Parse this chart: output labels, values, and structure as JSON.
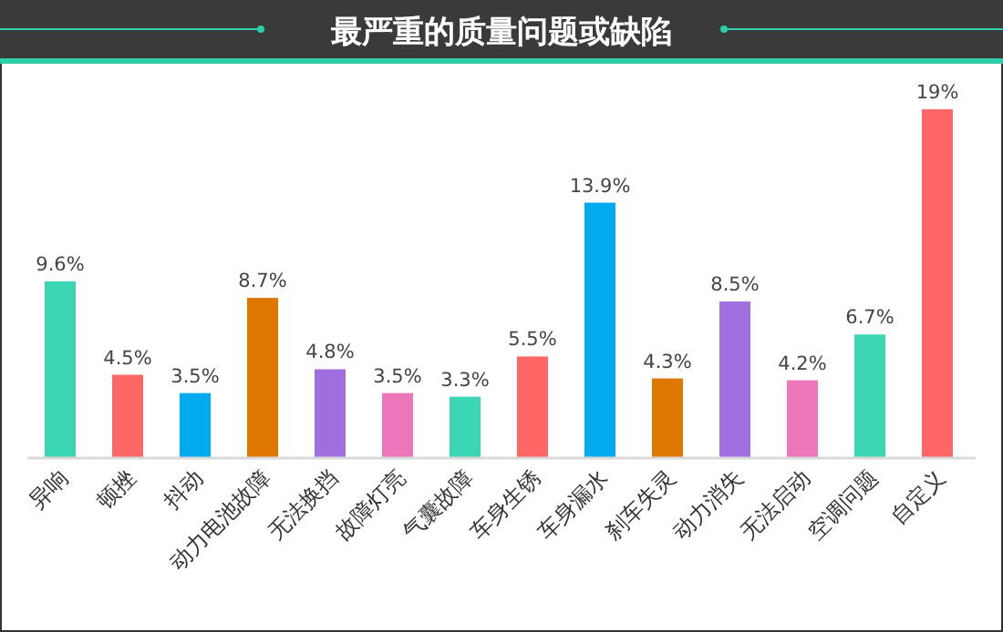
{
  "chart_data": {
    "type": "bar",
    "title": "最严重的质量问题或缺陷",
    "categories": [
      "异响",
      "顿挫",
      "抖动",
      "动力电池故障",
      "无法换挡",
      "故障灯亮",
      "气囊故障",
      "车身生锈",
      "车身漏水",
      "刹车失灵",
      "动力消失",
      "无法启动",
      "空调问题",
      "自定义"
    ],
    "values": [
      9.6,
      4.5,
      3.5,
      8.7,
      4.8,
      3.5,
      3.3,
      5.5,
      13.9,
      4.3,
      8.5,
      4.2,
      6.7,
      19
    ],
    "colors": [
      "#3dd6b5",
      "#ff6666",
      "#00aaee",
      "#dd7700",
      "#9f6fe0",
      "#ee77bb",
      "#3dd6b5",
      "#ff6666",
      "#00aaee",
      "#dd7700",
      "#9f6fe0",
      "#ee77bb",
      "#3dd6b5",
      "#ff6666"
    ],
    "value_labels": [
      "9.6%",
      "4.5%",
      "3.5%",
      "8.7%",
      "4.8%",
      "3.5%",
      "3.3%",
      "5.5%",
      "13.9%",
      "4.3%",
      "8.5%",
      "4.2%",
      "6.7%",
      "19%"
    ]
  }
}
